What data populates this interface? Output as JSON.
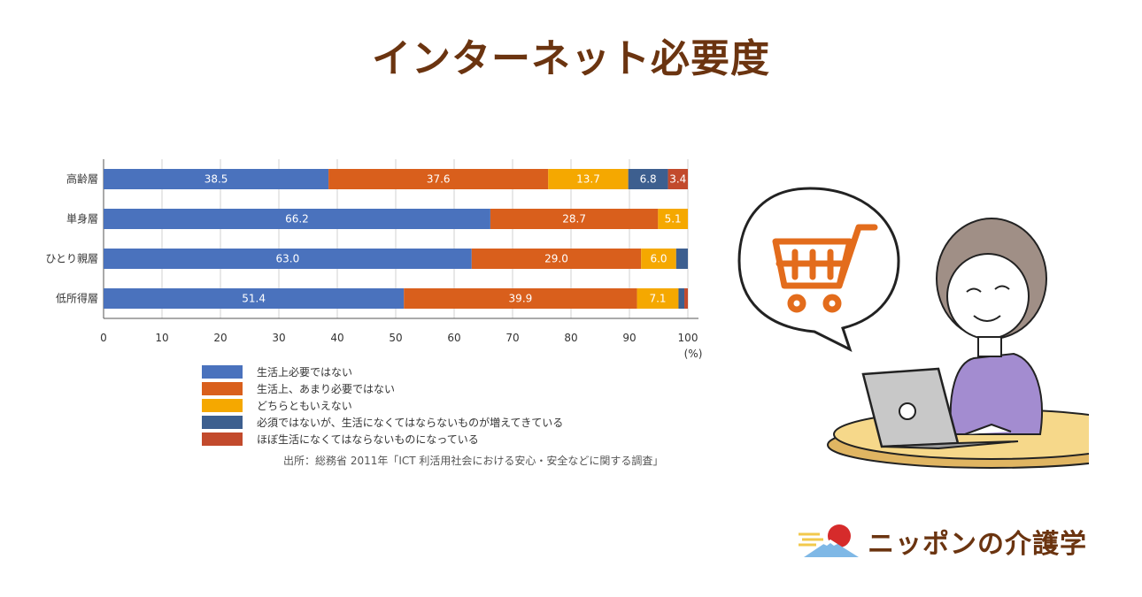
{
  "page": {
    "title": "インターネット必要度"
  },
  "chart_data": {
    "type": "bar",
    "orientation": "horizontal",
    "stacked": true,
    "categories": [
      "高齢層",
      "単身層",
      "ひとり親層",
      "低所得層"
    ],
    "series": [
      {
        "name": "生活上必要ではない",
        "color": "#4a72bd",
        "values": [
          38.5,
          66.2,
          63.0,
          51.4
        ],
        "labels": [
          "38.5",
          "66.2",
          "63.0",
          "51.4"
        ]
      },
      {
        "name": "生活上、あまり必要ではない",
        "color": "#d95f1c",
        "values": [
          37.6,
          28.7,
          29.0,
          39.9
        ],
        "labels": [
          "37.6",
          "28.7",
          "29.0",
          "39.9"
        ]
      },
      {
        "name": "どちらともいえない",
        "color": "#f5a800",
        "values": [
          13.7,
          5.1,
          6.0,
          7.1
        ],
        "labels": [
          "13.7",
          "5.1",
          "6.0",
          "7.1"
        ]
      },
      {
        "name": "必須ではないが、生活になくてはならないものが増えてきている",
        "color": "#3d5f8f",
        "values": [
          6.8,
          0,
          2.0,
          1.0
        ],
        "labels": [
          "6.8",
          "",
          "",
          ""
        ]
      },
      {
        "name": "ほぼ生活になくてはならないものになっている",
        "color": "#c24a2c",
        "values": [
          3.4,
          0,
          0,
          0.6
        ],
        "labels": [
          "3.4",
          "",
          "",
          ""
        ]
      }
    ],
    "xlim": [
      0,
      100
    ],
    "xticks": [
      "0",
      "10",
      "20",
      "30",
      "40",
      "50",
      "60",
      "70",
      "80",
      "90",
      "100"
    ],
    "x_unit": "(%)",
    "grid": true,
    "legend_position": "bottom"
  },
  "source": "出所：総務省 2011年「ICT 利活用社会における安心・安全などに関する調査」",
  "brand": {
    "name": "ニッポンの介護学"
  },
  "icons": {
    "speech_bubble": "cart-icon",
    "person": "elderly-woman-laptop",
    "brand_logo": "sun-mountain-logo"
  }
}
